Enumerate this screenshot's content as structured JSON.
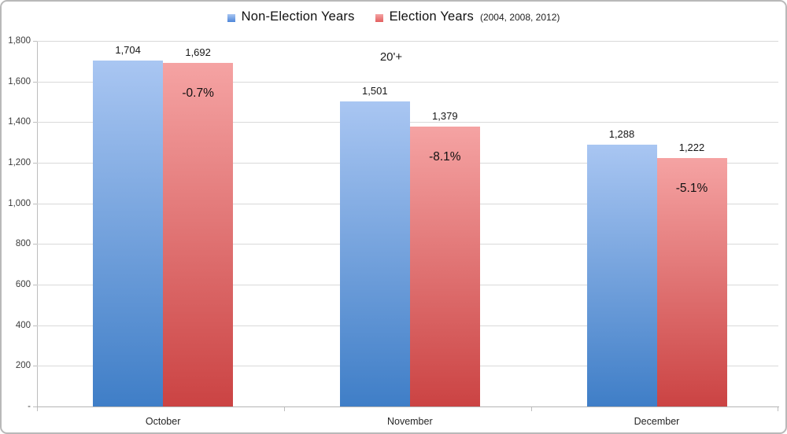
{
  "chart_data": {
    "type": "bar",
    "title": "",
    "categories": [
      "October",
      "November",
      "December"
    ],
    "series": [
      {
        "name": "Non-Election Years",
        "values": [
          1704,
          1501,
          1288
        ],
        "value_labels": [
          "1,704",
          "1,501",
          "1,288"
        ],
        "swatch_color": "#4E86D9",
        "gradient_top": "#A9C6F2",
        "gradient_bottom": "#3F7EC7"
      },
      {
        "name": "Election Years",
        "name_suffix": "(2004, 2008, 2012)",
        "values": [
          1692,
          1379,
          1222
        ],
        "value_labels": [
          "1,692",
          "1,379",
          "1,222"
        ],
        "pct_labels": [
          "-0.7%",
          "-8.1%",
          "-5.1%"
        ],
        "swatch_color": "#E25F5F",
        "gradient_top": "#F5A3A3",
        "gradient_bottom": "#CB4343"
      }
    ],
    "annotation": "20'+",
    "y_tick_labels": [
      "1,800",
      "1,600",
      "1,400",
      "1,200",
      "1,000",
      "800",
      "600",
      "400",
      "200",
      "-"
    ],
    "ylim": [
      0,
      1800
    ],
    "y_step": 200,
    "grid": true,
    "legend_position": "top"
  }
}
